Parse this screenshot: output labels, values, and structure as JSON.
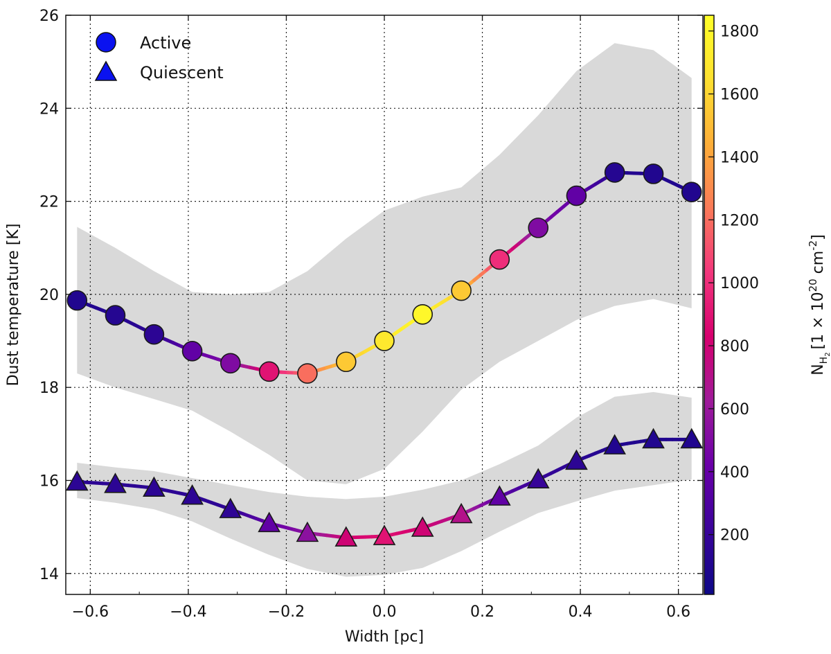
{
  "chart_data": {
    "type": "scatter",
    "xlabel": "Width [pc]",
    "ylabel": "Dust temperature [K]",
    "xlim": [
      -0.65,
      0.65
    ],
    "ylim": [
      13.55,
      26
    ],
    "x_ticks": [
      -0.6,
      -0.4,
      -0.2,
      0.0,
      0.2,
      0.4,
      0.6
    ],
    "x_tick_labels": [
      "−0.6",
      "−0.4",
      "−0.2",
      "0.0",
      "0.2",
      "0.4",
      "0.6"
    ],
    "y_ticks": [
      14,
      16,
      18,
      20,
      22,
      24,
      26
    ],
    "y_tick_labels": [
      "14",
      "16",
      "18",
      "20",
      "22",
      "24",
      "26"
    ],
    "grid": true,
    "legend_position": "top-left",
    "x": [
      -0.627,
      -0.549,
      -0.47,
      -0.392,
      -0.314,
      -0.235,
      -0.157,
      -0.078,
      0.0,
      0.078,
      0.157,
      0.235,
      0.314,
      0.392,
      0.47,
      0.549,
      0.627
    ],
    "series": [
      {
        "name": "Active",
        "marker": "circle",
        "values": [
          19.87,
          19.55,
          19.14,
          18.78,
          18.52,
          18.34,
          18.3,
          18.55,
          19.0,
          19.57,
          20.08,
          20.75,
          21.43,
          22.12,
          22.62,
          22.59,
          22.2
        ],
        "column_density": [
          100,
          120,
          150,
          380,
          500,
          900,
          1200,
          1550,
          1700,
          1800,
          1550,
          1000,
          500,
          380,
          120,
          100,
          100
        ],
        "band_upper": [
          21.45,
          21.0,
          20.5,
          20.05,
          20.0,
          20.05,
          20.5,
          21.2,
          21.8,
          22.1,
          22.3,
          23.0,
          23.85,
          24.8,
          25.4,
          25.25,
          24.65
        ],
        "band_lower": [
          18.3,
          18.0,
          17.75,
          17.5,
          17.05,
          16.55,
          16.0,
          15.92,
          16.25,
          17.05,
          17.95,
          18.55,
          19.0,
          19.45,
          19.75,
          19.9,
          19.7
        ]
      },
      {
        "name": "Quiescent",
        "marker": "triangle",
        "values": [
          15.97,
          15.92,
          15.84,
          15.67,
          15.38,
          15.08,
          14.87,
          14.77,
          14.8,
          14.98,
          15.27,
          15.65,
          16.02,
          16.42,
          16.75,
          16.88,
          16.88
        ],
        "column_density": [
          150,
          150,
          150,
          150,
          160,
          380,
          550,
          800,
          900,
          800,
          700,
          380,
          200,
          150,
          100,
          100,
          100
        ],
        "band_upper": [
          16.38,
          16.28,
          16.2,
          16.05,
          15.9,
          15.75,
          15.65,
          15.6,
          15.65,
          15.8,
          16.0,
          16.35,
          16.75,
          17.35,
          17.8,
          17.9,
          17.78
        ],
        "band_lower": [
          15.62,
          15.52,
          15.38,
          15.12,
          14.75,
          14.4,
          14.1,
          13.93,
          13.97,
          14.12,
          14.48,
          14.9,
          15.3,
          15.55,
          15.78,
          15.9,
          16.02
        ]
      }
    ],
    "colorbar": {
      "label_main": "N",
      "label_sub": "H",
      "label_subsub": "2",
      "label_bracket": "[1 × 10",
      "label_exp": "20",
      "label_unit": " cm",
      "label_unit_exp": "-2",
      "label_close": "]",
      "ticks": [
        200,
        400,
        600,
        800,
        1000,
        1200,
        1400,
        1600,
        1800
      ],
      "tick_labels": [
        "200",
        "400",
        "600",
        "800",
        "1000",
        "1200",
        "1400",
        "1600",
        "1800"
      ],
      "range": [
        10,
        1850
      ],
      "colormap": "plasma",
      "stops": [
        "#0d0887",
        "#3a049a",
        "#6a00a8",
        "#9e1b9a",
        "#d6006e",
        "#f2377c",
        "#fa7a58",
        "#fdae38",
        "#fde030",
        "#ffff28"
      ]
    },
    "band_color": "#d9d9d9",
    "marker_edge_color": "#1a1a1a"
  }
}
